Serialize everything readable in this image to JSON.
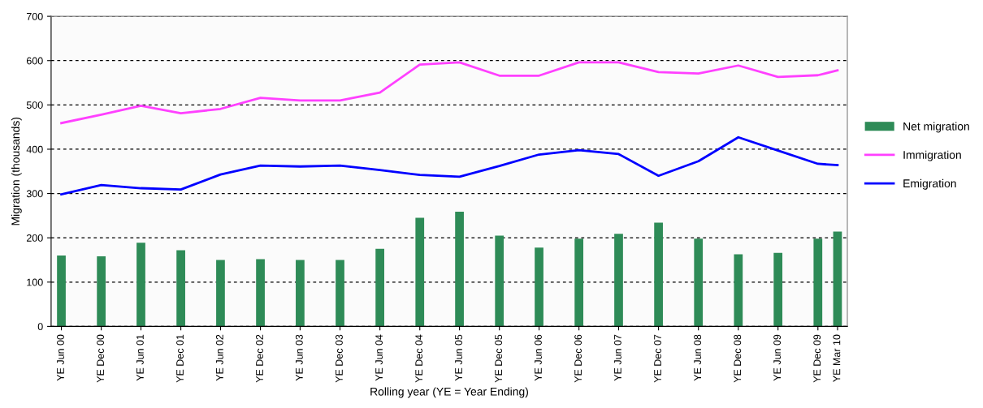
{
  "chart_data": {
    "type": "bar",
    "xlabel": "Rolling year (YE = Year Ending)",
    "ylabel": "Migration (thousands)",
    "x": [
      "2000-06",
      "2000-12",
      "2001-06",
      "2001-12",
      "2002-06",
      "2002-12",
      "2003-06",
      "2003-12",
      "2004-06",
      "2004-12",
      "2005-06",
      "2005-12",
      "2006-06",
      "2006-12",
      "2007-06",
      "2007-12",
      "2008-06",
      "2008-12",
      "2009-06",
      "2009-12",
      "2010-03"
    ],
    "xlim": [
      "2000-04-15",
      "2010-04-15"
    ],
    "xticks": [
      {
        "value": "2000-06",
        "label": "YE Jun 00"
      },
      {
        "value": "2000-12",
        "label": "YE Dec 00"
      },
      {
        "value": "2001-06",
        "label": "YE Jun 01"
      },
      {
        "value": "2001-12",
        "label": "YE Dec 01"
      },
      {
        "value": "2002-06",
        "label": "YE Jun 02"
      },
      {
        "value": "2002-12",
        "label": "YE Dec 02"
      },
      {
        "value": "2003-06",
        "label": "YE Jun 03"
      },
      {
        "value": "2003-12",
        "label": "YE Dec 03"
      },
      {
        "value": "2004-06",
        "label": "YE Jun 04"
      },
      {
        "value": "2004-12",
        "label": "YE Dec 04"
      },
      {
        "value": "2005-06",
        "label": "YE Jun 05"
      },
      {
        "value": "2005-12",
        "label": "YE Dec 05"
      },
      {
        "value": "2006-06",
        "label": "YE Jun 06"
      },
      {
        "value": "2006-12",
        "label": "YE Dec 06"
      },
      {
        "value": "2007-06",
        "label": "YE Jun 07"
      },
      {
        "value": "2007-12",
        "label": "YE Dec 07"
      },
      {
        "value": "2008-06",
        "label": "YE Jun 08"
      },
      {
        "value": "2008-12",
        "label": "YE Dec 08"
      },
      {
        "value": "2009-06",
        "label": "YE Jun 09"
      },
      {
        "value": "2009-12",
        "label": "YE Dec 09"
      },
      {
        "value": "2010-03",
        "label": "YE Mar 10"
      }
    ],
    "ylim": [
      0,
      700
    ],
    "yticks": [
      0,
      100,
      200,
      300,
      400,
      500,
      600,
      700
    ],
    "grid": "y",
    "legend": "right",
    "series": [
      {
        "name": "Net migration",
        "color": "#2e8b57",
        "values": [
          160,
          158,
          189,
          172,
          150,
          152,
          150,
          150,
          175,
          245,
          259,
          205,
          178,
          198,
          209,
          234,
          198,
          163,
          166,
          198,
          214
        ]
      },
      {
        "name": "Immigration",
        "type": "line",
        "color": "#ff40ff",
        "values": [
          459,
          478,
          498,
          481,
          491,
          516,
          510,
          510,
          528,
          591,
          596,
          566,
          566,
          596,
          596,
          574,
          571,
          589,
          563,
          567,
          578
        ]
      },
      {
        "name": "Emigration",
        "type": "line",
        "color": "#0000ff",
        "values": [
          298,
          319,
          312,
          309,
          343,
          363,
          361,
          363,
          353,
          342,
          338,
          362,
          388,
          398,
          389,
          340,
          373,
          427,
          397,
          367,
          364
        ]
      }
    ]
  }
}
